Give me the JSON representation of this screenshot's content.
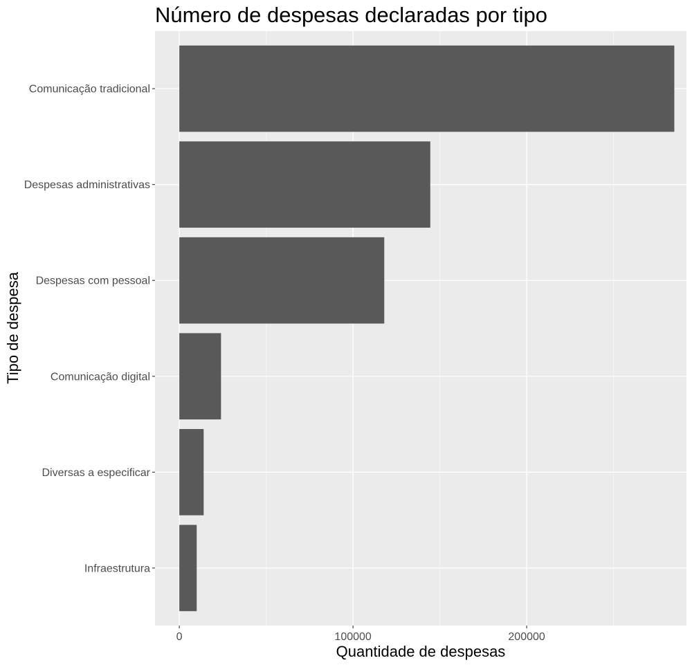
{
  "chart_data": {
    "type": "bar",
    "orientation": "horizontal",
    "title": "Número de despesas declaradas por tipo",
    "xlabel": "Quantidade de despesas",
    "ylabel": "Tipo de despesa",
    "categories": [
      "Comunicação tradicional",
      "Despesas administrativas",
      "Despesas com pessoal",
      "Comunicação digital",
      "Diversas a especificar",
      "Infraestrutura"
    ],
    "values": [
      285000,
      144500,
      118000,
      24000,
      14000,
      10000
    ],
    "xlim": [
      -14000,
      292000
    ],
    "xticks": [
      0,
      100000,
      200000
    ],
    "xtick_labels": [
      "0",
      "100000",
      "200000"
    ],
    "grid": true,
    "colors": {
      "bar": "#595959",
      "panel": "#ebebeb",
      "grid_major": "#ffffff",
      "grid_minor": "#f5f5f5"
    }
  }
}
